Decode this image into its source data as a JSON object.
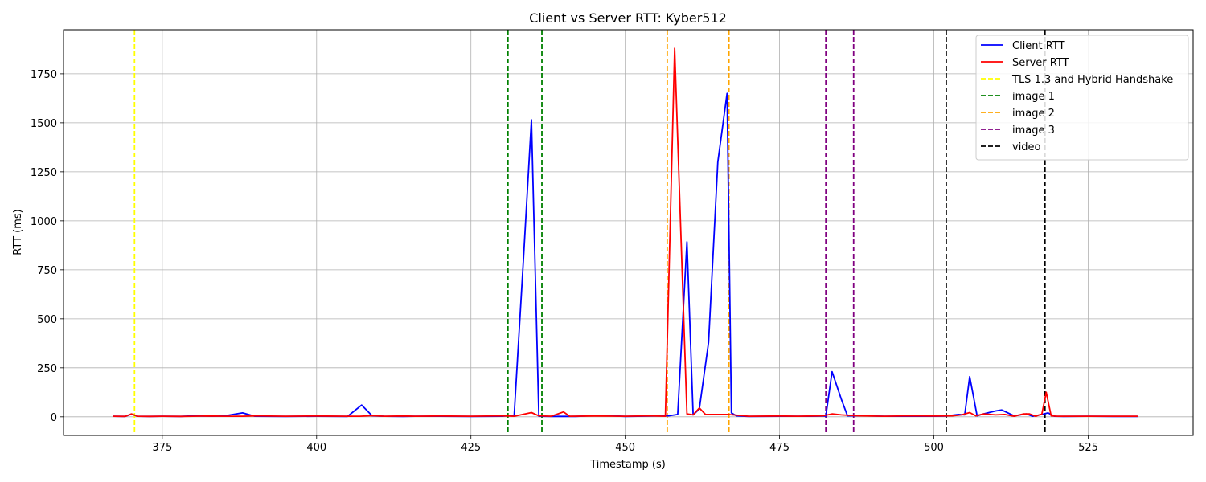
{
  "chart_data": {
    "type": "line",
    "title": "Client vs Server RTT: Kyber512",
    "xlabel": "Timestamp (s)",
    "ylabel": "RTT (ms)",
    "xlim": [
      359,
      542
    ],
    "ylim": [
      -95,
      1975
    ],
    "xticks": [
      375,
      400,
      425,
      450,
      475,
      500,
      525
    ],
    "yticks": [
      0,
      250,
      500,
      750,
      1000,
      1250,
      1500,
      1750
    ],
    "grid": true,
    "legend_position": "top-right",
    "series": [
      {
        "name": "Client RTT",
        "color": "#0000ff",
        "x": [
          367,
          369,
          370,
          371,
          373,
          375,
          378,
          380,
          383,
          385,
          388,
          390,
          395,
          400,
          405,
          407.3,
          409,
          411,
          414,
          416,
          420,
          425,
          430,
          432,
          433.5,
          434.8,
          436,
          438,
          442,
          446,
          450,
          454,
          457,
          458.5,
          460,
          461,
          462,
          463.5,
          465,
          466.5,
          467.2,
          468,
          470,
          475,
          480,
          482.5,
          483.5,
          485,
          486,
          488,
          492,
          496,
          500,
          502,
          504,
          505,
          505.8,
          507,
          508,
          510,
          511,
          513,
          515,
          516,
          517.5,
          518.5,
          519.5,
          521,
          525,
          529,
          533
        ],
        "y": [
          3,
          2,
          14,
          3,
          2,
          3,
          2,
          5,
          3,
          4,
          20,
          3,
          2,
          3,
          2,
          60,
          5,
          3,
          2,
          3,
          3,
          2,
          3,
          8,
          800,
          1515,
          3,
          2,
          2,
          8,
          2,
          4,
          5,
          12,
          893,
          10,
          40,
          380,
          1300,
          1650,
          20,
          5,
          2,
          3,
          3,
          4,
          230,
          90,
          5,
          6,
          3,
          3,
          3,
          4,
          12,
          10,
          205,
          5,
          15,
          30,
          35,
          5,
          15,
          3,
          12,
          20,
          3,
          2,
          3,
          2,
          2
        ]
      },
      {
        "name": "Server RTT",
        "color": "#ff0000",
        "x": [
          367,
          369,
          370,
          371,
          373,
          375,
          378,
          380,
          383,
          385,
          388,
          390,
          395,
          400,
          405,
          407,
          409,
          411,
          414,
          416,
          420,
          425,
          430,
          432,
          434.8,
          436,
          438,
          440,
          441,
          445,
          450,
          454,
          456.5,
          458,
          460,
          461,
          462,
          463,
          465,
          466.5,
          467.5,
          470,
          475,
          478,
          480,
          482,
          483.5,
          485,
          486,
          488,
          492,
          496,
          500,
          503,
          504.5,
          505.8,
          506.8,
          508,
          510,
          511.5,
          513,
          514.5,
          515.5,
          516.5,
          517.5,
          518.2,
          519,
          520,
          525,
          529,
          533
        ],
        "y": [
          3,
          2,
          15,
          3,
          2,
          3,
          2,
          3,
          4,
          3,
          3,
          5,
          3,
          4,
          3,
          3,
          6,
          3,
          4,
          3,
          4,
          3,
          5,
          3,
          22,
          5,
          3,
          25,
          3,
          4,
          3,
          5,
          3,
          1880,
          15,
          10,
          45,
          12,
          12,
          12,
          10,
          3,
          4,
          3,
          4,
          5,
          15,
          10,
          8,
          5,
          3,
          5,
          4,
          5,
          10,
          22,
          5,
          15,
          10,
          12,
          3,
          15,
          15,
          3,
          15,
          125,
          5,
          3,
          3,
          3,
          3
        ]
      }
    ],
    "vlines": [
      {
        "name": "TLS 1.3 and Hybrid Handshake",
        "color": "#ffff00",
        "x": [
          370.5
        ]
      },
      {
        "name": "image 1",
        "color": "#008000",
        "x": [
          431,
          436.5
        ]
      },
      {
        "name": "image 2",
        "color": "#ffa500",
        "x": [
          456.8,
          466.8
        ]
      },
      {
        "name": "image 3",
        "color": "#800080",
        "x": [
          482.5,
          487
        ]
      },
      {
        "name": "video",
        "color": "#000000",
        "x": [
          502,
          518
        ]
      }
    ]
  }
}
